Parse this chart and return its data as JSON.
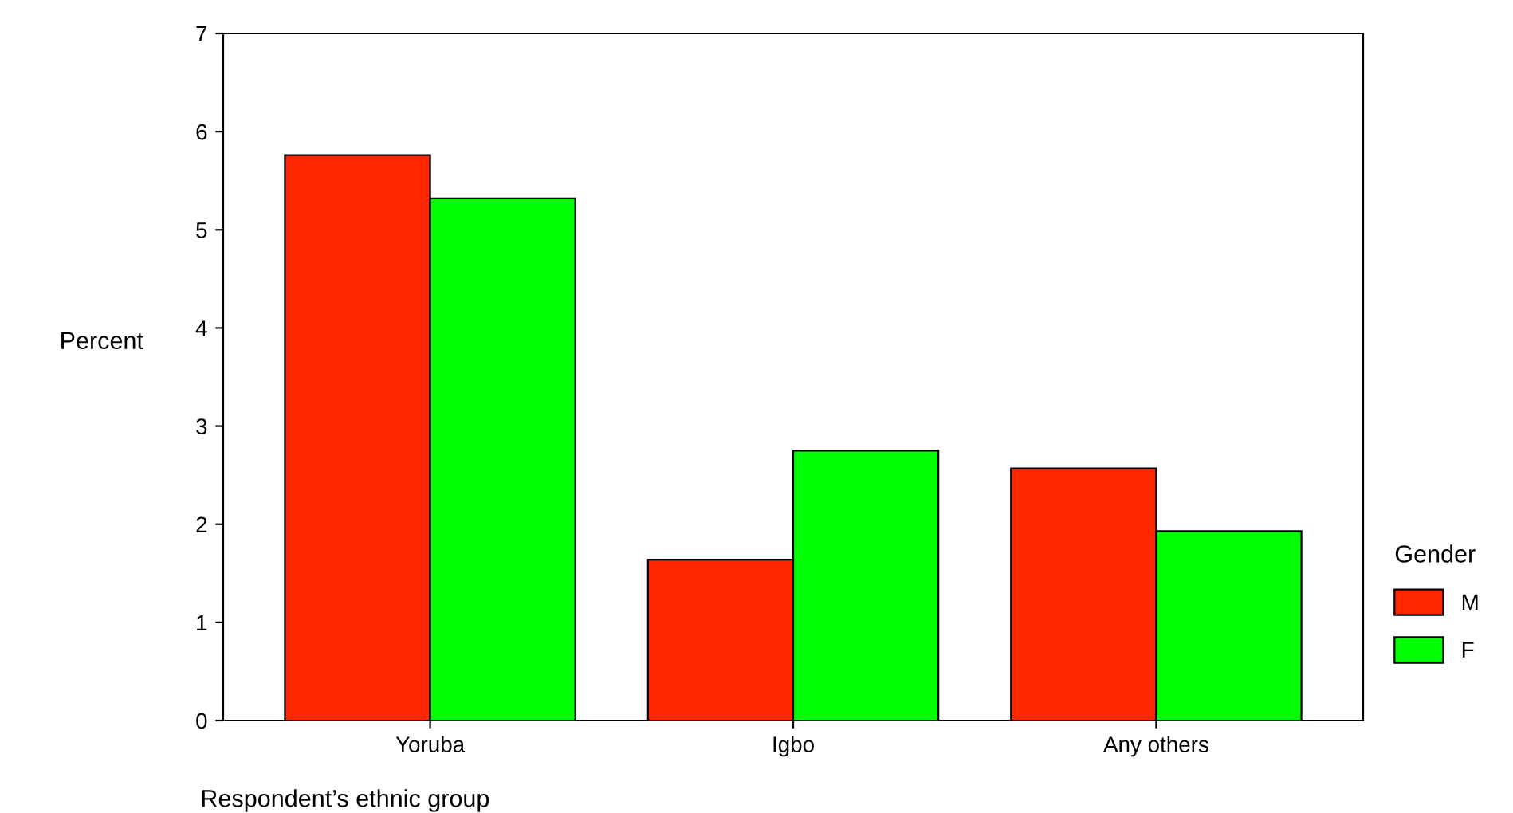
{
  "chart_data": {
    "type": "bar",
    "xlabel": "Respondent’s ethnic group",
    "ylabel": "Percent",
    "legend_title": "Gender",
    "categories": [
      "Yoruba",
      "Igbo",
      "Any others"
    ],
    "series": [
      {
        "name": "M",
        "color": "#ff2600",
        "values": [
          5.76,
          1.64,
          2.57
        ]
      },
      {
        "name": "F",
        "color": "#00ff00",
        "values": [
          5.32,
          2.75,
          1.93
        ]
      }
    ],
    "ylim": [
      0,
      7
    ],
    "yticks": [
      0,
      1,
      2,
      3,
      4,
      5,
      6,
      7
    ],
    "grid": false,
    "legend": "right"
  }
}
